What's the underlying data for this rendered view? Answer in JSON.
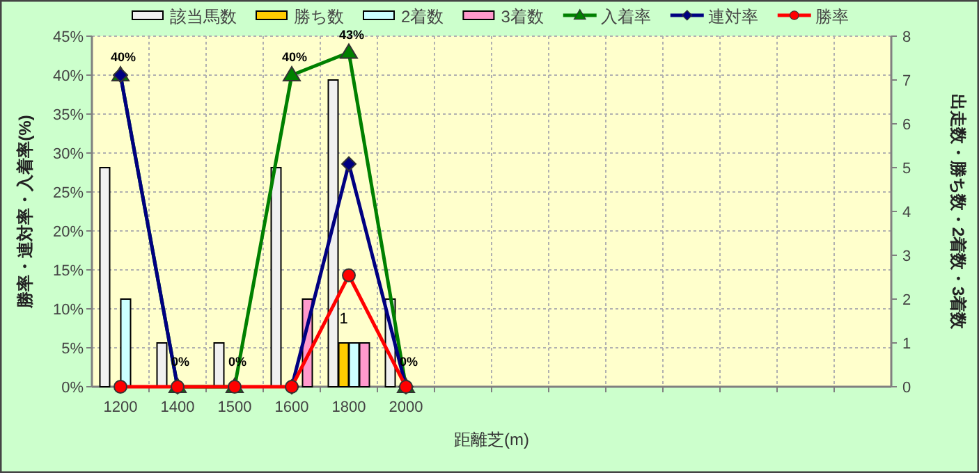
{
  "chart_data": {
    "type": "bar",
    "xlabel": "距離芝(m)",
    "ylabel": "勝率・連対率・入着率(%)",
    "y2label": "出走数・勝ち数・2着数・3着数",
    "categories": [
      "1200",
      "1400",
      "1500",
      "1600",
      "1800",
      "2000",
      null,
      null,
      null,
      null,
      null,
      null,
      null,
      null
    ],
    "series": [
      {
        "name": "該当馬数",
        "axis": "y2",
        "color": "#f0f0f0",
        "values": [
          5,
          1,
          1,
          5,
          7,
          2,
          null,
          null,
          null,
          null,
          null,
          null,
          null,
          null
        ]
      },
      {
        "name": "勝ち数",
        "axis": "y2",
        "color": "#ffcc00",
        "values": [
          0,
          0,
          0,
          0,
          1,
          0,
          null,
          null,
          null,
          null,
          null,
          null,
          null,
          null
        ],
        "value_labels": [
          null,
          null,
          null,
          null,
          "1",
          null,
          null,
          null,
          null,
          null,
          null,
          null,
          null,
          null
        ]
      },
      {
        "name": "2着数",
        "axis": "y2",
        "color": "#ccffff",
        "values": [
          2,
          0,
          0,
          0,
          1,
          0,
          null,
          null,
          null,
          null,
          null,
          null,
          null,
          null
        ]
      },
      {
        "name": "3着数",
        "axis": "y2",
        "color": "#ff99cc",
        "values": [
          0,
          0,
          0,
          2,
          1,
          0,
          null,
          null,
          null,
          null,
          null,
          null,
          null,
          null
        ]
      },
      {
        "name": "入着率",
        "type": "line",
        "color": "#008000",
        "marker": "triangle",
        "values": [
          40,
          0,
          0,
          40,
          42.9,
          0,
          null,
          null,
          null,
          null,
          null,
          null,
          null,
          null
        ],
        "value_labels": [
          "40%",
          "0%",
          "0%",
          "40%",
          "43%",
          "0%",
          null,
          null,
          null,
          null,
          null,
          null,
          null,
          null
        ]
      },
      {
        "name": "連対率",
        "type": "line",
        "color": "#000080",
        "marker": "diamond",
        "values": [
          40,
          0,
          null,
          0,
          28.6,
          0,
          null,
          null,
          null,
          null,
          null,
          null,
          null,
          null
        ]
      },
      {
        "name": "勝率",
        "type": "line",
        "color": "#ff0000",
        "marker": "circle",
        "values": [
          0,
          0,
          0,
          0,
          14.3,
          0,
          null,
          null,
          null,
          null,
          null,
          null,
          null,
          null
        ]
      }
    ],
    "ylim": [
      0,
      45
    ],
    "yticks": [
      {
        "value": 0,
        "label": "0%"
      },
      {
        "value": 5,
        "label": "5%"
      },
      {
        "value": 10,
        "label": "10%"
      },
      {
        "value": 15,
        "label": "15%"
      },
      {
        "value": 20,
        "label": "20%"
      },
      {
        "value": 25,
        "label": "25%"
      },
      {
        "value": 30,
        "label": "30%"
      },
      {
        "value": 35,
        "label": "35%"
      },
      {
        "value": 40,
        "label": "40%"
      },
      {
        "value": 45,
        "label": "45%"
      }
    ],
    "y2lim": [
      0,
      8
    ],
    "y2ticks": [
      0,
      1,
      2,
      3,
      4,
      5,
      6,
      7,
      8
    ],
    "grid": true,
    "legend": "top"
  }
}
